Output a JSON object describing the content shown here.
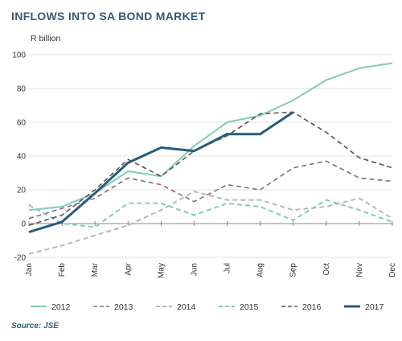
{
  "title": "INFLOWS INTO SA BOND MARKET",
  "unit_label": "R billion",
  "source": "Source: JSE",
  "chart_data": {
    "type": "line",
    "categories": [
      "Jan",
      "Feb",
      "Mar",
      "Apr",
      "May",
      "Jun",
      "Jul",
      "Aug",
      "Sep",
      "Oct",
      "Nov",
      "Dec"
    ],
    "ylim": [
      -20,
      100
    ],
    "yticks": [
      -20,
      0,
      20,
      40,
      60,
      80,
      100
    ],
    "grid": "horizontal",
    "legend_position": "bottom",
    "series": [
      {
        "name": "2012",
        "color": "#7ecdbd",
        "dash": "solid",
        "width": 2,
        "values": [
          8,
          10,
          18,
          31,
          28,
          46,
          60,
          64,
          73,
          85,
          92,
          95
        ]
      },
      {
        "name": "2013",
        "color": "#8a6a8a",
        "dash": "dashed",
        "width": 1.6,
        "values": [
          3,
          9,
          15,
          27,
          23,
          13,
          23,
          20,
          33,
          37,
          27,
          25
        ]
      },
      {
        "name": "2014",
        "color": "#b8b8b8",
        "dash": "dashed",
        "width": 2,
        "values": [
          -18,
          -13,
          -7,
          -1,
          8,
          19,
          14,
          14,
          8,
          10,
          15,
          3
        ]
      },
      {
        "name": "2015",
        "color": "#7ecdbd",
        "dash": "dashed",
        "width": 2,
        "values": [
          11,
          0,
          -2,
          12,
          12,
          5,
          12,
          10,
          2,
          14,
          8,
          1
        ]
      },
      {
        "name": "2016",
        "color": "#555555",
        "dash": "dashed",
        "width": 1.6,
        "values": [
          -1,
          5,
          20,
          38,
          28,
          43,
          52,
          65,
          66,
          54,
          39,
          33
        ]
      },
      {
        "name": "2017",
        "color": "#275c7c",
        "dash": "solid",
        "width": 3,
        "values": [
          -5,
          1,
          18,
          36,
          45,
          43,
          53,
          53,
          66,
          null,
          null,
          null
        ]
      }
    ]
  }
}
